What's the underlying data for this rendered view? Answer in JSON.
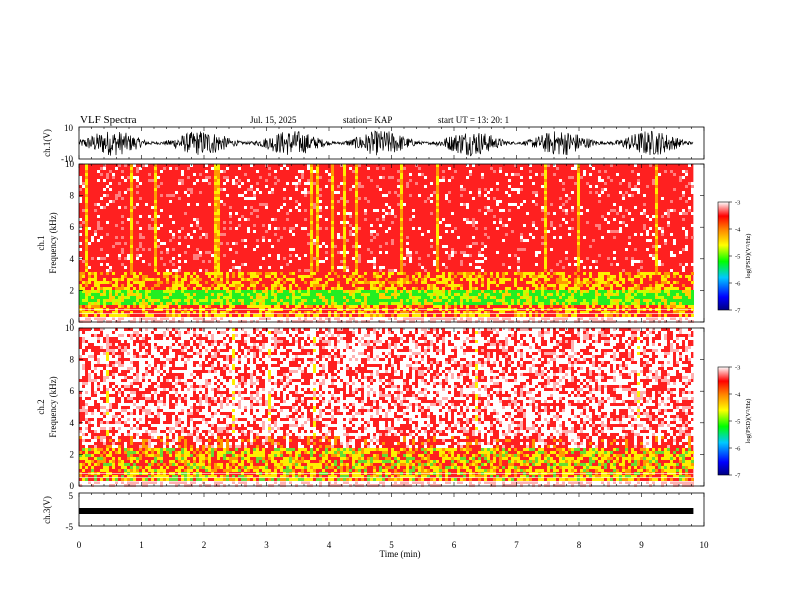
{
  "header": {
    "title": "VLF Spectra",
    "date": "Jul. 15, 2025",
    "station": "station= KAP",
    "start": "start UT = 13: 20: 1"
  },
  "chart_data": [
    {
      "type": "line",
      "name": "ch1-waveform",
      "ylabel": "ch.1(V)",
      "ylim": [
        -10,
        10
      ],
      "ytick_labels": [
        "10",
        "-10"
      ],
      "x_range_min": [
        0,
        9.83
      ],
      "y_range": [
        -8,
        8
      ]
    },
    {
      "type": "heatmap",
      "name": "ch1-spectrogram",
      "ylabel": "ch.1\nFrequency (kHz)",
      "ylim": [
        0,
        10
      ],
      "yticks": [
        0,
        2,
        4,
        6,
        8,
        10
      ],
      "x_range_min": [
        0,
        9.83
      ],
      "colorbar": {
        "label": "log(PSD)(V²/Hz)",
        "range": [
          -7,
          -3
        ],
        "ticks": [
          -3,
          -4,
          -5,
          -6,
          -7
        ]
      }
    },
    {
      "type": "heatmap",
      "name": "ch2-spectrogram",
      "ylabel": "ch.2\nFrequency (kHz)",
      "ylim": [
        0,
        10
      ],
      "yticks": [
        0,
        2,
        4,
        6,
        8,
        10
      ],
      "x_range_min": [
        0,
        9.83
      ],
      "colorbar": {
        "label": "log(PSD)(V²/Hz)",
        "range": [
          -7,
          -3
        ],
        "ticks": [
          -3,
          -4,
          -5,
          -6,
          -7
        ]
      }
    },
    {
      "type": "line",
      "name": "ch3-waveform",
      "ylabel": "ch.3(V)",
      "ylim": [
        -5,
        5
      ],
      "ytick_labels": [
        "5",
        "-5"
      ],
      "x_range_min": [
        0,
        9.83
      ],
      "y_range": [
        -0.5,
        0.5
      ]
    }
  ],
  "xaxis": {
    "label": "Time (min)",
    "xlim": [
      0,
      10
    ],
    "ticks": [
      "0",
      "1",
      "2",
      "3",
      "4",
      "5",
      "6",
      "7",
      "8",
      "9",
      "10"
    ]
  }
}
